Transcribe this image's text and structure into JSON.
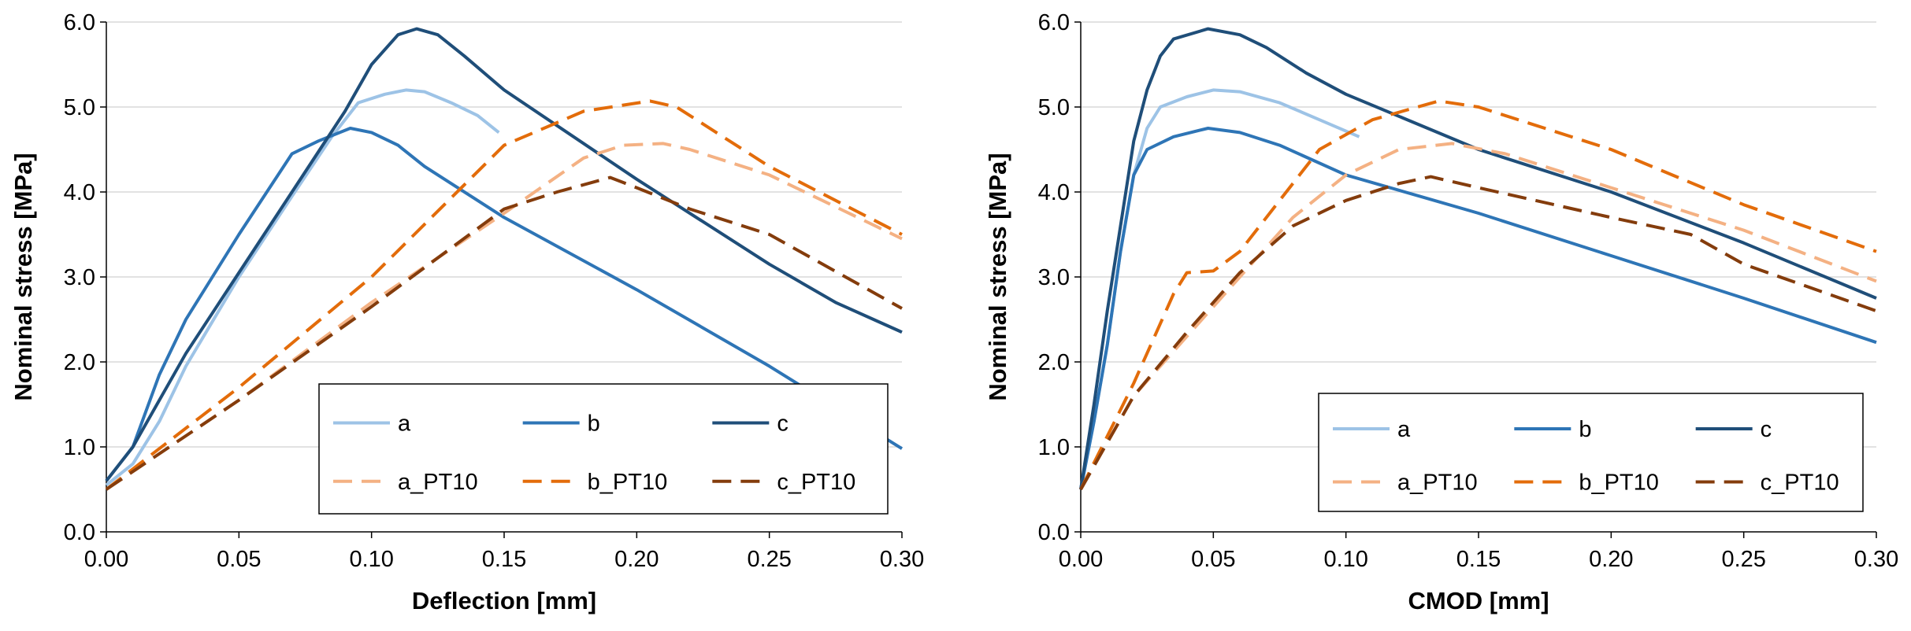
{
  "chart_data": [
    {
      "type": "line",
      "xlabel": "Deflection [mm]",
      "ylabel": "Nominal stress [MPa]",
      "xlim": [
        0,
        0.3
      ],
      "ylim": [
        0,
        6.0
      ],
      "xticks": [
        "0.00",
        "0.05",
        "0.10",
        "0.15",
        "0.20",
        "0.25",
        "0.30"
      ],
      "yticks": [
        "0.0",
        "1.0",
        "2.0",
        "3.0",
        "4.0",
        "5.0",
        "6.0"
      ],
      "grid": "horizontal",
      "legend_position": "bottom-right",
      "series": [
        {
          "name": "a",
          "color": "#9dc3e6",
          "dash": "solid",
          "points": [
            [
              0,
              0.55
            ],
            [
              0.01,
              0.8
            ],
            [
              0.02,
              1.3
            ],
            [
              0.03,
              1.95
            ],
            [
              0.05,
              3.0
            ],
            [
              0.07,
              3.95
            ],
            [
              0.085,
              4.65
            ],
            [
              0.095,
              5.05
            ],
            [
              0.105,
              5.15
            ],
            [
              0.113,
              5.2
            ],
            [
              0.12,
              5.18
            ],
            [
              0.13,
              5.05
            ],
            [
              0.14,
              4.9
            ],
            [
              0.148,
              4.7
            ]
          ]
        },
        {
          "name": "b",
          "color": "#2e75b6",
          "dash": "solid",
          "points": [
            [
              0,
              0.6
            ],
            [
              0.01,
              1.0
            ],
            [
              0.02,
              1.85
            ],
            [
              0.03,
              2.5
            ],
            [
              0.05,
              3.5
            ],
            [
              0.07,
              4.45
            ],
            [
              0.08,
              4.6
            ],
            [
              0.092,
              4.75
            ],
            [
              0.1,
              4.7
            ],
            [
              0.11,
              4.55
            ],
            [
              0.12,
              4.3
            ],
            [
              0.15,
              3.7
            ],
            [
              0.2,
              2.85
            ],
            [
              0.25,
              1.95
            ],
            [
              0.3,
              0.98
            ]
          ]
        },
        {
          "name": "c",
          "color": "#1f4e79",
          "dash": "solid",
          "points": [
            [
              0,
              0.6
            ],
            [
              0.01,
              1.0
            ],
            [
              0.02,
              1.55
            ],
            [
              0.03,
              2.1
            ],
            [
              0.05,
              3.05
            ],
            [
              0.07,
              4.0
            ],
            [
              0.09,
              4.95
            ],
            [
              0.1,
              5.5
            ],
            [
              0.11,
              5.85
            ],
            [
              0.117,
              5.92
            ],
            [
              0.125,
              5.85
            ],
            [
              0.135,
              5.6
            ],
            [
              0.15,
              5.2
            ],
            [
              0.2,
              4.15
            ],
            [
              0.25,
              3.15
            ],
            [
              0.275,
              2.7
            ],
            [
              0.3,
              2.35
            ]
          ]
        },
        {
          "name": "a_PT10",
          "color": "#f4b183",
          "dash": "dashed",
          "points": [
            [
              0,
              0.5
            ],
            [
              0.05,
              1.55
            ],
            [
              0.1,
              2.7
            ],
            [
              0.15,
              3.75
            ],
            [
              0.18,
              4.4
            ],
            [
              0.195,
              4.55
            ],
            [
              0.21,
              4.57
            ],
            [
              0.22,
              4.5
            ],
            [
              0.25,
              4.2
            ],
            [
              0.3,
              3.45
            ]
          ]
        },
        {
          "name": "b_PT10",
          "color": "#e36c0a",
          "dash": "dashed",
          "points": [
            [
              0,
              0.5
            ],
            [
              0.05,
              1.7
            ],
            [
              0.1,
              3.0
            ],
            [
              0.15,
              4.55
            ],
            [
              0.18,
              4.95
            ],
            [
              0.205,
              5.07
            ],
            [
              0.215,
              5.0
            ],
            [
              0.25,
              4.3
            ],
            [
              0.3,
              3.5
            ]
          ]
        },
        {
          "name": "c_PT10",
          "color": "#843c0c",
          "dash": "dashed",
          "points": [
            [
              0,
              0.5
            ],
            [
              0.05,
              1.55
            ],
            [
              0.1,
              2.65
            ],
            [
              0.15,
              3.8
            ],
            [
              0.17,
              4.0
            ],
            [
              0.19,
              4.17
            ],
            [
              0.2,
              4.05
            ],
            [
              0.22,
              3.8
            ],
            [
              0.25,
              3.5
            ],
            [
              0.3,
              2.63
            ]
          ]
        }
      ]
    },
    {
      "type": "line",
      "xlabel": "CMOD [mm]",
      "ylabel": "Nominal stress [MPa]",
      "xlim": [
        0,
        0.3
      ],
      "ylim": [
        0,
        6.0
      ],
      "xticks": [
        "0.00",
        "0.05",
        "0.10",
        "0.15",
        "0.20",
        "0.25",
        "0.30"
      ],
      "yticks": [
        "0.0",
        "1.0",
        "2.0",
        "3.0",
        "4.0",
        "5.0",
        "6.0"
      ],
      "grid": "horizontal",
      "legend_position": "bottom-right",
      "series": [
        {
          "name": "a",
          "color": "#9dc3e6",
          "dash": "solid",
          "points": [
            [
              0,
              0.5
            ],
            [
              0.005,
              1.3
            ],
            [
              0.01,
              2.2
            ],
            [
              0.015,
              3.3
            ],
            [
              0.02,
              4.2
            ],
            [
              0.025,
              4.75
            ],
            [
              0.03,
              5.0
            ],
            [
              0.04,
              5.12
            ],
            [
              0.05,
              5.2
            ],
            [
              0.06,
              5.18
            ],
            [
              0.075,
              5.05
            ],
            [
              0.09,
              4.85
            ],
            [
              0.105,
              4.65
            ]
          ]
        },
        {
          "name": "b",
          "color": "#2e75b6",
          "dash": "solid",
          "points": [
            [
              0,
              0.5
            ],
            [
              0.005,
              1.3
            ],
            [
              0.01,
              2.2
            ],
            [
              0.015,
              3.3
            ],
            [
              0.02,
              4.2
            ],
            [
              0.025,
              4.5
            ],
            [
              0.035,
              4.65
            ],
            [
              0.048,
              4.75
            ],
            [
              0.06,
              4.7
            ],
            [
              0.075,
              4.55
            ],
            [
              0.1,
              4.2
            ],
            [
              0.15,
              3.75
            ],
            [
              0.2,
              3.25
            ],
            [
              0.25,
              2.75
            ],
            [
              0.3,
              2.23
            ]
          ]
        },
        {
          "name": "c",
          "color": "#1f4e79",
          "dash": "solid",
          "points": [
            [
              0,
              0.5
            ],
            [
              0.005,
              1.5
            ],
            [
              0.01,
              2.6
            ],
            [
              0.015,
              3.6
            ],
            [
              0.02,
              4.6
            ],
            [
              0.025,
              5.2
            ],
            [
              0.03,
              5.6
            ],
            [
              0.035,
              5.8
            ],
            [
              0.048,
              5.92
            ],
            [
              0.06,
              5.85
            ],
            [
              0.07,
              5.7
            ],
            [
              0.085,
              5.4
            ],
            [
              0.1,
              5.15
            ],
            [
              0.15,
              4.5
            ],
            [
              0.2,
              4.0
            ],
            [
              0.25,
              3.4
            ],
            [
              0.3,
              2.75
            ]
          ]
        },
        {
          "name": "a_PT10",
          "color": "#f4b183",
          "dash": "dashed",
          "points": [
            [
              0,
              0.5
            ],
            [
              0.02,
              1.6
            ],
            [
              0.04,
              2.3
            ],
            [
              0.06,
              3.0
            ],
            [
              0.08,
              3.7
            ],
            [
              0.1,
              4.2
            ],
            [
              0.12,
              4.5
            ],
            [
              0.14,
              4.57
            ],
            [
              0.16,
              4.45
            ],
            [
              0.2,
              4.05
            ],
            [
              0.25,
              3.55
            ],
            [
              0.3,
              2.95
            ]
          ]
        },
        {
          "name": "b_PT10",
          "color": "#e36c0a",
          "dash": "dashed",
          "points": [
            [
              0,
              0.5
            ],
            [
              0.02,
              1.75
            ],
            [
              0.035,
              2.8
            ],
            [
              0.04,
              3.05
            ],
            [
              0.05,
              3.07
            ],
            [
              0.06,
              3.3
            ],
            [
              0.075,
              3.9
            ],
            [
              0.09,
              4.5
            ],
            [
              0.11,
              4.85
            ],
            [
              0.135,
              5.07
            ],
            [
              0.15,
              5.0
            ],
            [
              0.2,
              4.5
            ],
            [
              0.25,
              3.85
            ],
            [
              0.3,
              3.3
            ]
          ]
        },
        {
          "name": "c_PT10",
          "color": "#843c0c",
          "dash": "dashed",
          "points": [
            [
              0,
              0.5
            ],
            [
              0.02,
              1.6
            ],
            [
              0.04,
              2.35
            ],
            [
              0.06,
              3.05
            ],
            [
              0.08,
              3.6
            ],
            [
              0.1,
              3.9
            ],
            [
              0.12,
              4.1
            ],
            [
              0.132,
              4.18
            ],
            [
              0.15,
              4.05
            ],
            [
              0.2,
              3.7
            ],
            [
              0.23,
              3.5
            ],
            [
              0.25,
              3.15
            ],
            [
              0.3,
              2.6
            ]
          ]
        }
      ]
    }
  ]
}
